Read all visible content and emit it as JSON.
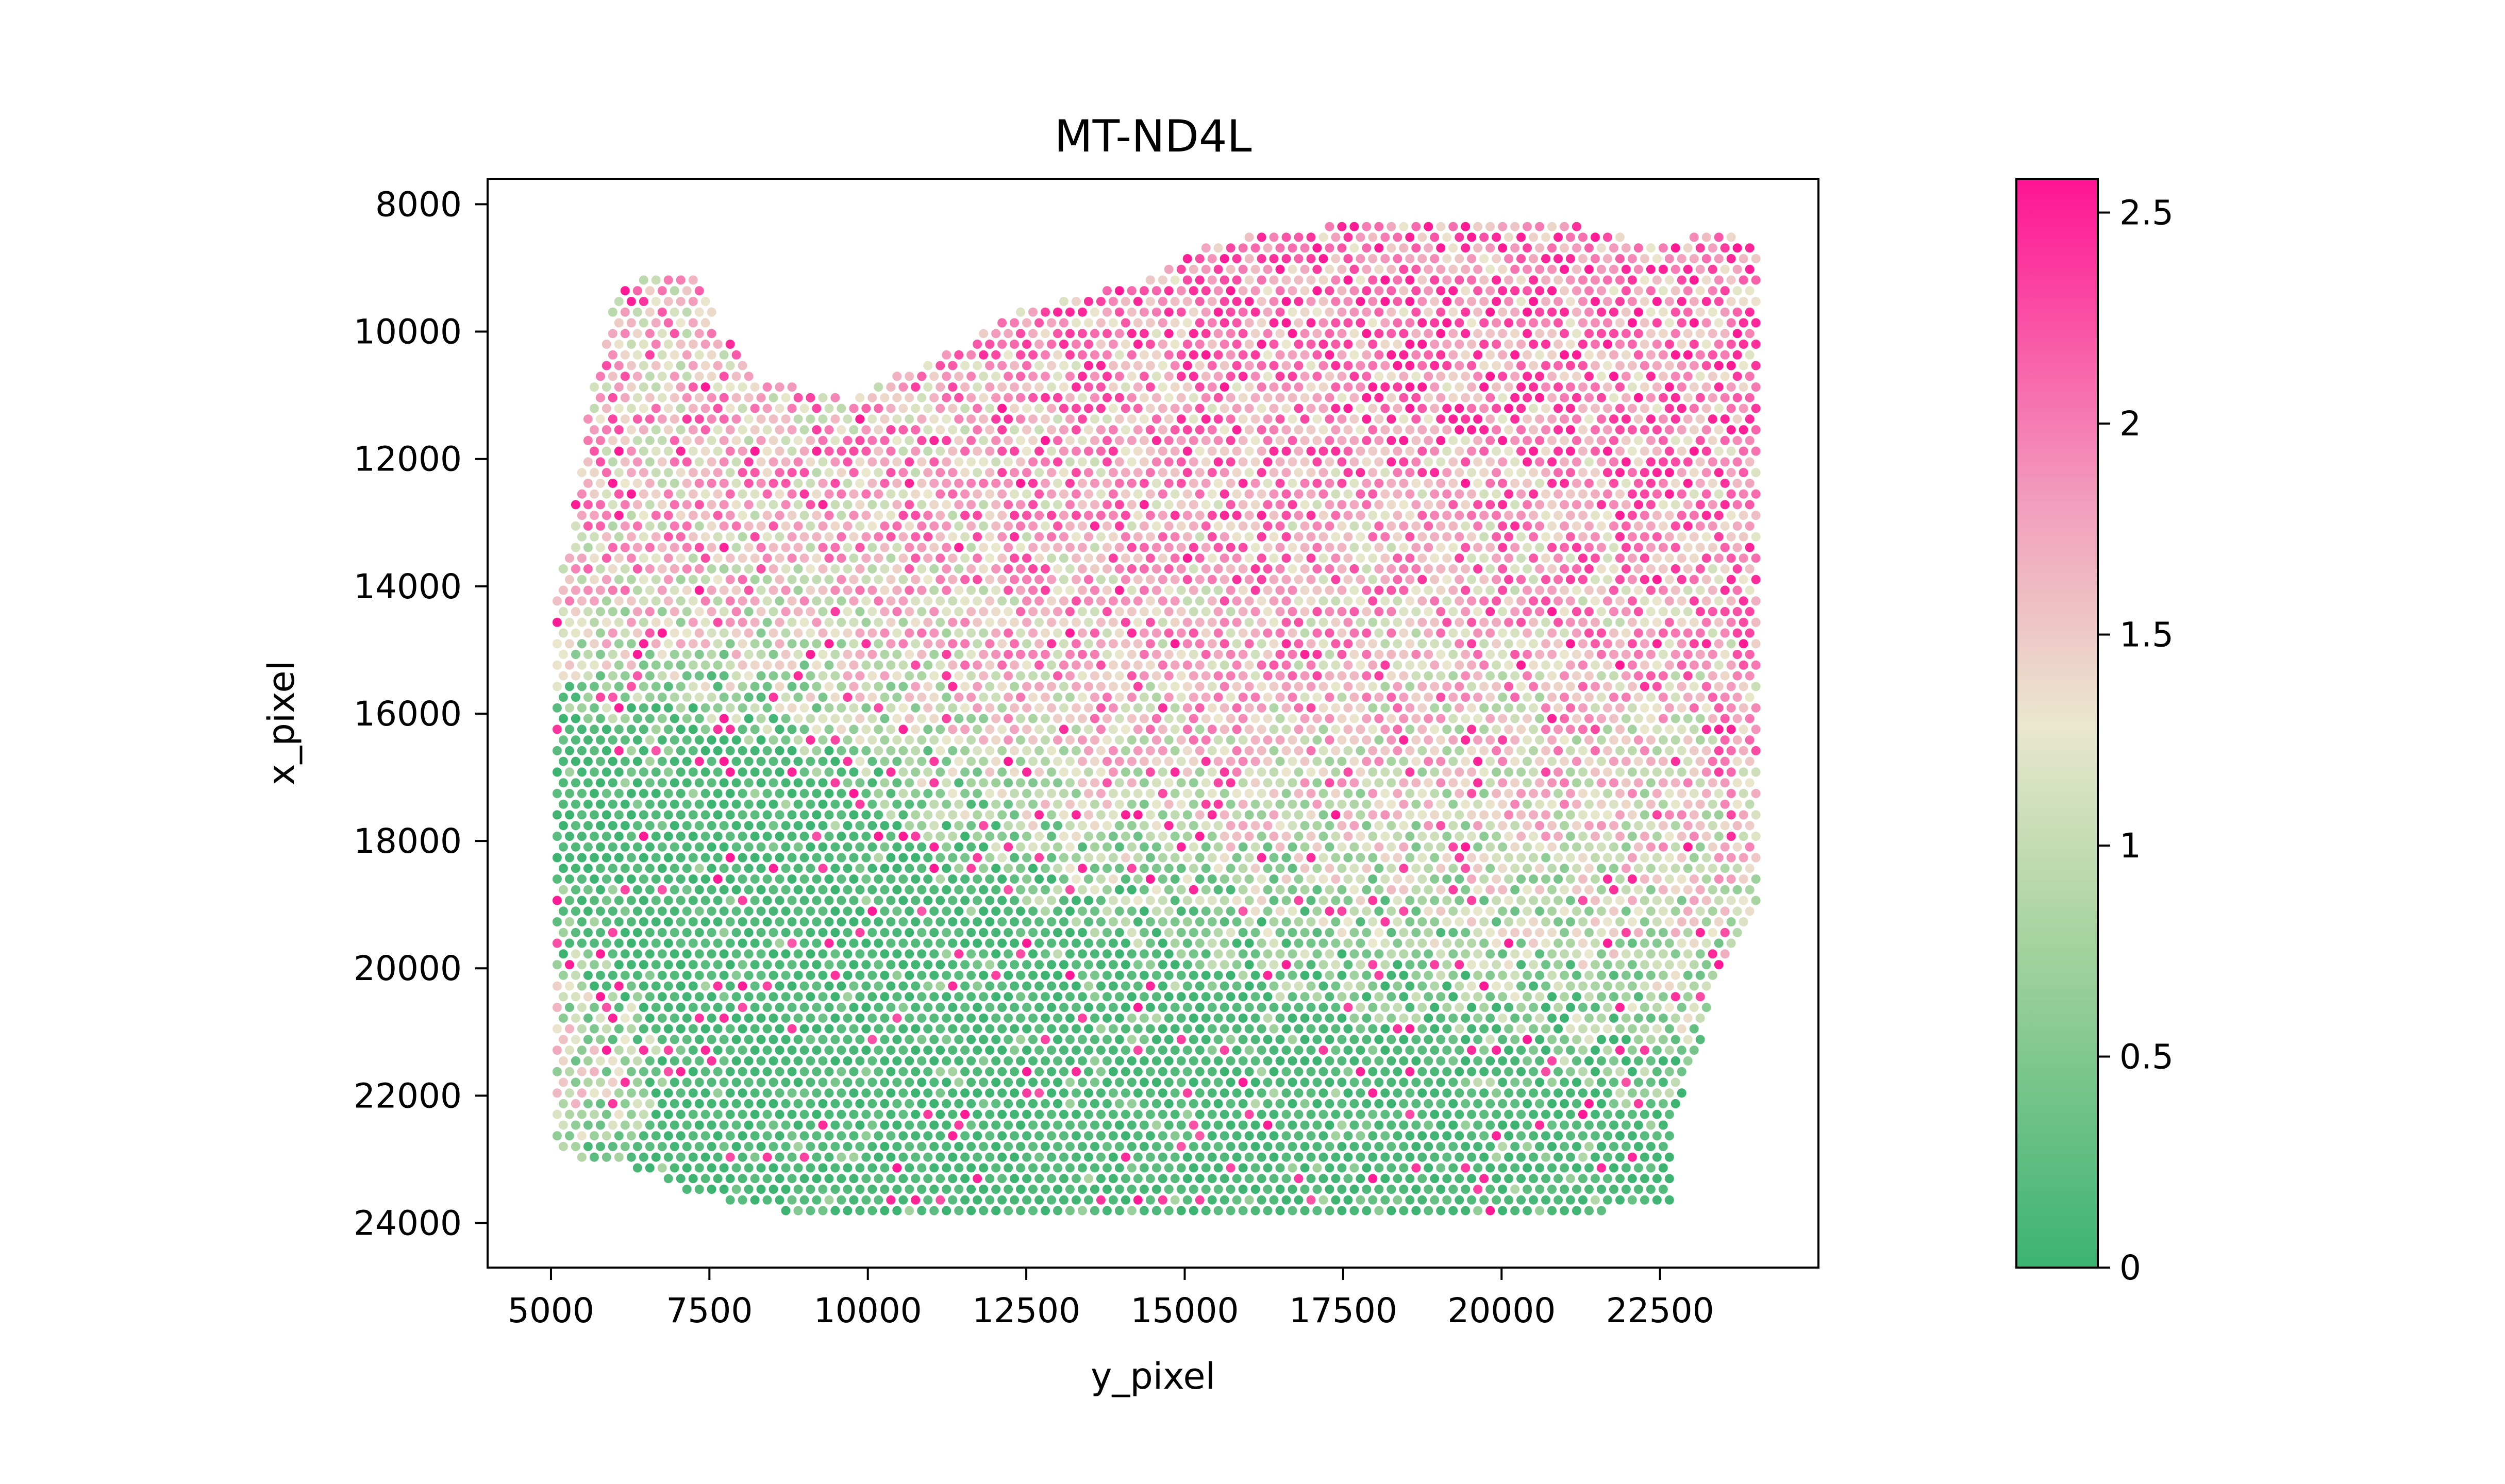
{
  "chart_data": {
    "type": "scatter",
    "title": "MT-ND4L",
    "xlabel": "y_pixel",
    "ylabel": "x_pixel",
    "xlim": [
      4000,
      25000
    ],
    "ylim": [
      7600,
      24700
    ],
    "y_inverted": true,
    "grid": false,
    "x_ticks": [
      5000,
      7500,
      10000,
      12500,
      15000,
      17500,
      20000,
      22500
    ],
    "y_ticks": [
      8000,
      10000,
      12000,
      14000,
      16000,
      18000,
      20000,
      22000,
      24000
    ],
    "colorbar": {
      "range": [
        0,
        2.58
      ],
      "ticks": [
        0,
        0.5,
        1,
        1.5,
        2,
        2.5
      ],
      "tick_labels": [
        "0",
        "0.5",
        "1",
        "1.5",
        "2",
        "2.5"
      ],
      "colors": [
        "#3cb371",
        "#a6d3a0",
        "#eae7cd",
        "#f29fbd",
        "#ff1493"
      ],
      "color_positions": [
        0,
        0.3,
        0.5,
        0.7,
        1
      ]
    },
    "spot_grid": {
      "x_start": 5000,
      "x_end": 24100,
      "x_step": 195,
      "y_start": 8350,
      "y_end": 23950,
      "y_step": 168
    },
    "tissue_outline": [
      [
        5050,
        22900
      ],
      [
        5020,
        14300
      ],
      [
        5300,
        13300
      ],
      [
        5450,
        12100
      ],
      [
        5650,
        11000
      ],
      [
        5900,
        9800
      ],
      [
        6250,
        9200
      ],
      [
        6800,
        9050
      ],
      [
        7300,
        9200
      ],
      [
        7700,
        10000
      ],
      [
        8200,
        10700
      ],
      [
        8900,
        10850
      ],
      [
        9700,
        11050
      ],
      [
        10500,
        10650
      ],
      [
        11500,
        10250
      ],
      [
        12300,
        9650
      ],
      [
        13300,
        9450
      ],
      [
        14400,
        9200
      ],
      [
        15200,
        8650
      ],
      [
        16400,
        8450
      ],
      [
        17500,
        8320
      ],
      [
        19000,
        8300
      ],
      [
        21000,
        8300
      ],
      [
        22500,
        8650
      ],
      [
        23200,
        8400
      ],
      [
        24050,
        8600
      ],
      [
        24100,
        18300
      ],
      [
        24250,
        18700
      ],
      [
        23800,
        19500
      ],
      [
        23400,
        20100
      ],
      [
        23050,
        21500
      ],
      [
        22700,
        22300
      ],
      [
        22650,
        23650
      ],
      [
        21500,
        23850
      ],
      [
        16000,
        23850
      ],
      [
        12000,
        23950
      ],
      [
        10000,
        23900
      ],
      [
        8800,
        23850
      ],
      [
        7200,
        23550
      ],
      [
        6500,
        23200
      ],
      [
        5600,
        23000
      ]
    ],
    "expression_regions": [
      {
        "center": [
          7200,
          11000
        ],
        "radius": 3400,
        "value": 1.6
      },
      {
        "center": [
          17500,
          11200
        ],
        "radius": 5200,
        "value": 2.0
      },
      {
        "center": [
          22000,
          11500
        ],
        "radius": 3200,
        "value": 1.9
      },
      {
        "center": [
          13000,
          13800
        ],
        "radius": 3600,
        "value": 1.6
      },
      {
        "center": [
          19000,
          16000
        ],
        "radius": 4200,
        "value": 1.3
      },
      {
        "center": [
          5200,
          21400
        ],
        "radius": 1400,
        "value": 1.5
      },
      {
        "center": [
          9000,
          20500
        ],
        "radius": 4500,
        "value": 0.05
      },
      {
        "center": [
          17000,
          22200
        ],
        "radius": 4200,
        "value": 0.15
      }
    ],
    "seed": 20240607
  }
}
